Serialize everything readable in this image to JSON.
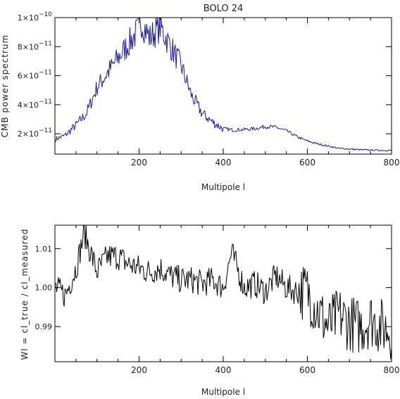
{
  "chart_data": [
    {
      "type": "line",
      "title": "BOLO 24",
      "xlabel": "Multipole l",
      "ylabel": "CMB power spectrum",
      "xlim": [
        0,
        800
      ],
      "ylim": [
        6e-12,
        1e-10
      ],
      "x_ticks": [
        200,
        400,
        600,
        800
      ],
      "x_tick_labels": [
        "200",
        "400",
        "600",
        "800"
      ],
      "y_ticks": [
        2e-11,
        4e-11,
        6e-11,
        8e-11,
        1e-10
      ],
      "y_tick_labels": [
        {
          "mant": "2×10",
          "exp": "−11"
        },
        {
          "mant": "4×10",
          "exp": "−11"
        },
        {
          "mant": "6×10",
          "exp": "−11"
        },
        {
          "mant": "8×10",
          "exp": "−11"
        },
        {
          "mant": "1×10",
          "exp": "−10"
        }
      ],
      "grid": false,
      "series": [
        {
          "color": "#1a1a9c",
          "x": [
            0,
            25,
            50,
            75,
            100,
            125,
            150,
            175,
            200,
            205,
            225,
            250,
            275,
            300,
            325,
            350,
            375,
            400,
            425,
            450,
            475,
            500,
            525,
            550,
            575,
            600,
            625,
            650,
            675,
            700,
            725,
            750,
            775,
            800
          ],
          "y": [
            1.6e-11,
            1.9e-11,
            2.6e-11,
            3.4e-11,
            5.2e-11,
            6.2e-11,
            7.2e-11,
            8.2e-11,
            9.2e-11,
            9.8e-11,
            8.6e-11,
            9.4e-11,
            8e-11,
            6.7e-11,
            4.6e-11,
            3.4e-11,
            2.8e-11,
            2.35e-11,
            2.25e-11,
            2.3e-11,
            2.35e-11,
            2.5e-11,
            2.45e-11,
            2.2e-11,
            1.8e-11,
            1.5e-11,
            1.3e-11,
            1.15e-11,
            1e-11,
            9.5e-12,
            9e-12,
            8.8e-12,
            8.6e-12,
            8.5e-12
          ]
        }
      ]
    },
    {
      "type": "line",
      "title": "",
      "xlabel": "Multipole l",
      "ylabel": "Wl = cl_true / cl_measured",
      "xlim": [
        0,
        800
      ],
      "ylim": [
        0.981,
        1.016
      ],
      "x_ticks": [
        200,
        400,
        600,
        800
      ],
      "x_tick_labels": [
        "200",
        "400",
        "600",
        "800"
      ],
      "y_ticks": [
        0.99,
        1.0,
        1.01
      ],
      "y_tick_labels": [
        "0.99",
        "1.00",
        "1.01"
      ],
      "grid": false,
      "series": [
        {
          "color": "#000000",
          "x": [
            0,
            25,
            50,
            70,
            100,
            125,
            150,
            175,
            200,
            225,
            250,
            275,
            300,
            325,
            350,
            375,
            400,
            420,
            450,
            475,
            500,
            525,
            550,
            575,
            600,
            625,
            650,
            675,
            700,
            725,
            750,
            775,
            800
          ],
          "y": [
            1.0,
            0.998,
            1.005,
            1.014,
            1.004,
            1.008,
            1.008,
            1.006,
            1.005,
            1.004,
            1.005,
            1.003,
            1.002,
            1.002,
            1.001,
            1.002,
            1.0,
            1.009,
            1.0,
            1.001,
            0.999,
            1.003,
            1.0,
            0.999,
            0.999,
            0.994,
            0.99,
            0.993,
            0.991,
            0.99,
            0.992,
            0.99,
            0.989
          ]
        }
      ]
    }
  ]
}
